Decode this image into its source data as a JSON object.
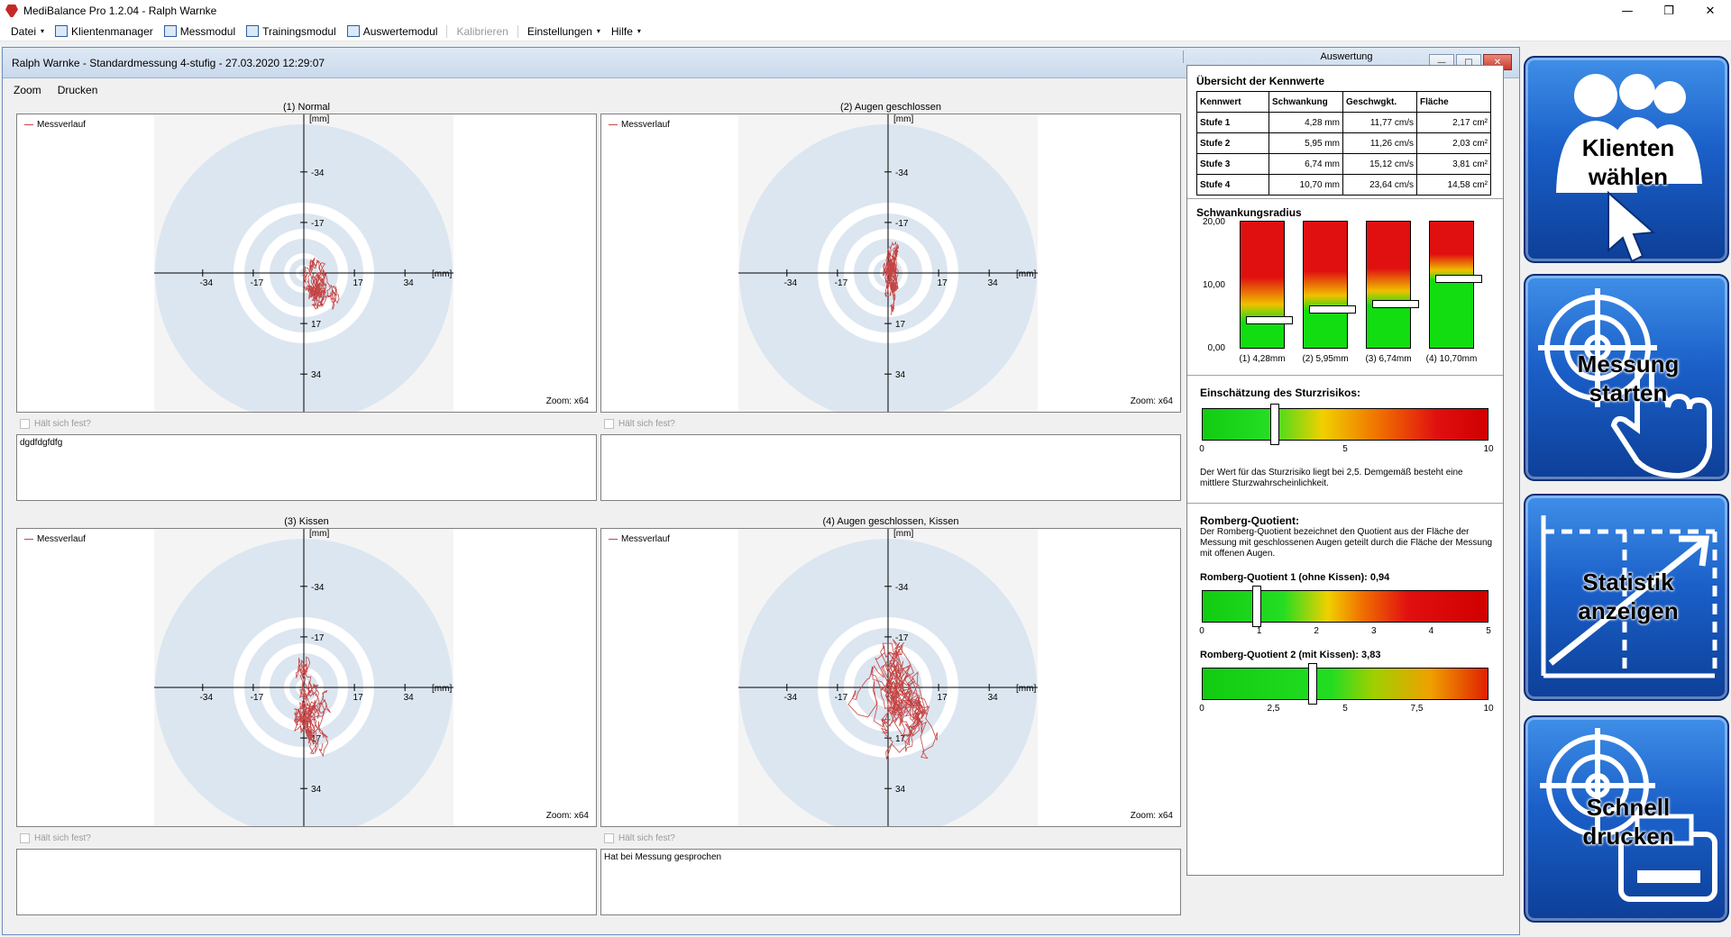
{
  "app": {
    "title": "MediBalance Pro   1.2.04 - Ralph Warnke",
    "window_controls": [
      "—",
      "❐",
      "✕"
    ]
  },
  "menu": {
    "items": [
      {
        "label": "Datei",
        "caret": true,
        "icon": ""
      },
      {
        "label": "Klientenmanager",
        "caret": false,
        "icon": "clients-icon"
      },
      {
        "label": "Messmodul",
        "caret": false,
        "icon": "measure-icon"
      },
      {
        "label": "Trainingsmodul",
        "caret": false,
        "icon": "training-icon"
      },
      {
        "label": "Auswertemodul",
        "caret": false,
        "icon": "evaluation-icon"
      },
      {
        "label": "Kalibrieren",
        "caret": false,
        "icon": "",
        "disabled": true
      },
      {
        "label": "Einstellungen",
        "caret": true,
        "icon": ""
      },
      {
        "label": "Hilfe",
        "caret": true,
        "icon": ""
      }
    ]
  },
  "child": {
    "title": "Ralph Warnke - Standardmessung 4-stufig - 27.03.2020 12:29:07",
    "menu": [
      "Zoom",
      "Drucken"
    ],
    "controls": [
      "—",
      "□",
      "✕"
    ]
  },
  "common": {
    "legend": "Messverlauf",
    "zoom": "Zoom: x64",
    "checkbox_label": "Hält sich fest?",
    "unit": "[mm]",
    "tick_labels": [
      "-34",
      "-17",
      "17",
      "34"
    ],
    "track_color": "#c44444",
    "target_colors": {
      "outer": "#dce6f0",
      "ring": "#ffffff",
      "background": "#f4f4f4"
    }
  },
  "plots": [
    {
      "title": "(1) Normal",
      "notes": "dgdfdgfdfg",
      "spread_x": 9,
      "spread_y": 18,
      "center_x": 8,
      "center_y": -8
    },
    {
      "title": "(2) Augen geschlossen",
      "notes": "",
      "spread_x": 6,
      "spread_y": 22,
      "center_x": 1,
      "center_y": -2
    },
    {
      "title": "(3) Kissen",
      "notes": "",
      "spread_x": 12,
      "spread_y": 26,
      "center_x": 6,
      "center_y": -12
    },
    {
      "title": "(4) Augen geschlossen, Kissen",
      "notes": "Hat bei Messung gesprochen",
      "spread_x": 28,
      "spread_y": 48,
      "center_x": 3,
      "center_y": -7
    }
  ],
  "evaluation": {
    "header": "Auswertung",
    "overview": {
      "title": "Übersicht der Kennwerte",
      "columns": [
        "Kennwert",
        "Schwankung",
        "Geschwgkt.",
        "Fläche"
      ],
      "rows": [
        [
          "Stufe 1",
          "4,28 mm",
          "11,77 cm/s",
          "2,17 cm²"
        ],
        [
          "Stufe 2",
          "5,95 mm",
          "11,26 cm/s",
          "2,03 cm²"
        ],
        [
          "Stufe 3",
          "6,74 mm",
          "15,12 cm/s",
          "3,81 cm²"
        ],
        [
          "Stufe 4",
          "10,70 mm",
          "23,64 cm/s",
          "14,58 cm²"
        ]
      ]
    },
    "radius": {
      "title": "Schwankungsradius",
      "y_ticks": [
        "20,00",
        "10,00",
        "0,00"
      ],
      "ymax": 20,
      "values": [
        4.28,
        5.95,
        6.74,
        10.7
      ],
      "labels": [
        "(1) 4,28mm",
        "(2) 5,95mm",
        "(3) 6,74mm",
        "(4) 10,70mm"
      ]
    },
    "fall_risk": {
      "title": "Einschätzung des Sturzrisikos:",
      "value": 2.5,
      "min": 0,
      "max": 10,
      "ticks": [
        "0",
        "5",
        "10"
      ],
      "text": "Der Wert für das Sturzrisiko liegt bei 2,5. Demgemäß besteht eine mittlere Sturzwahrscheinlichkeit."
    },
    "romberg": {
      "title": "Romberg-Quotient:",
      "desc": "Der Romberg-Quotient bezeichnet den Quotient aus der Fläche der Messung mit geschlossenen Augen geteilt durch die Fläche der Messung mit offenen Augen.",
      "q1": {
        "label": "Romberg-Quotient 1 (ohne Kissen): 0,94",
        "value": 0.94,
        "max": 5,
        "ticks": [
          "0",
          "1",
          "2",
          "3",
          "4",
          "5"
        ]
      },
      "q2": {
        "label": "Romberg-Quotient 2 (mit Kissen): 3,83",
        "value": 3.83,
        "max": 10,
        "ticks": [
          "0",
          "2,5",
          "5",
          "7,5",
          "10"
        ]
      }
    }
  },
  "tiles": [
    {
      "line1": "Klienten",
      "line2": "wählen",
      "icon": "clients-tile-icon"
    },
    {
      "line1": "Messung",
      "line2": "starten",
      "icon": "target-hand-icon"
    },
    {
      "line1": "Statistik",
      "line2": "anzeigen",
      "icon": "chart-icon"
    },
    {
      "line1": "Schnell",
      "line2": "drucken",
      "icon": "target-printer-icon"
    }
  ]
}
